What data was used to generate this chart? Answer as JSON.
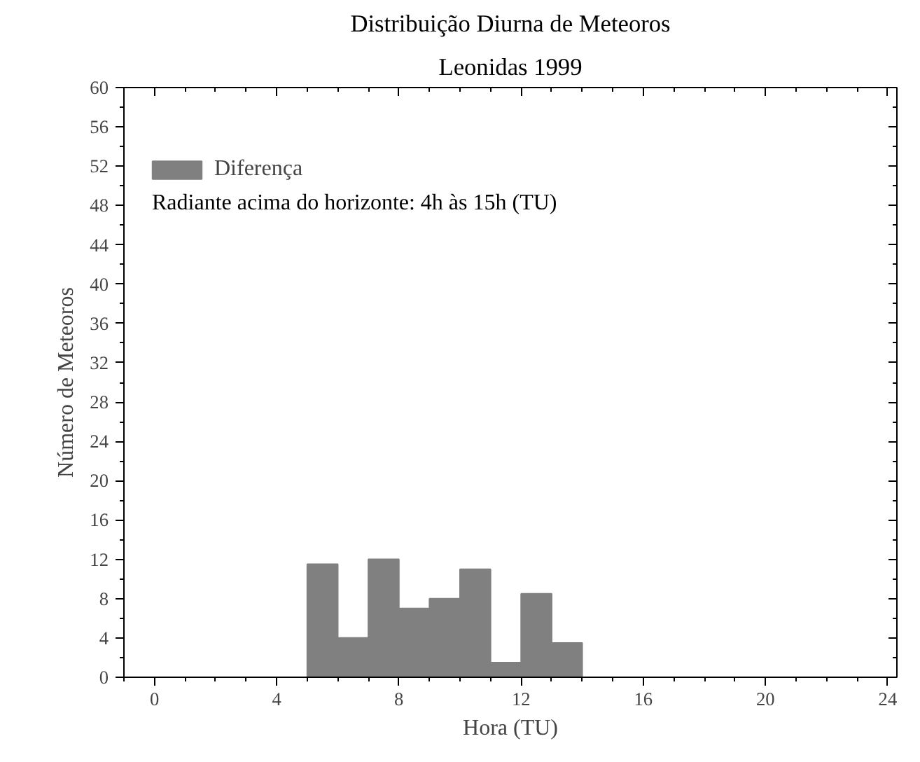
{
  "chart_data": {
    "type": "histogram",
    "title": "Distribuição Diurna de Meteoros",
    "subtitle": "Leonidas 1999",
    "xlabel": "Hora (TU)",
    "ylabel": "Número de Meteoros",
    "bins": [
      5,
      6,
      7,
      8,
      9,
      10,
      11,
      12,
      13,
      14
    ],
    "series": [
      {
        "name": "Diferença",
        "color": "#808080",
        "values": [
          11.5,
          4,
          12,
          7,
          8,
          11,
          1.5,
          8.5,
          3.5
        ]
      }
    ],
    "xlim": [
      -1,
      24.3
    ],
    "ylim": [
      0,
      60
    ],
    "xticks": [
      0,
      4,
      8,
      12,
      16,
      20,
      24
    ],
    "yticks": [
      0,
      4,
      8,
      12,
      16,
      20,
      24,
      28,
      32,
      36,
      40,
      44,
      48,
      52,
      56,
      60
    ],
    "annotations": [
      "Radiante acima do horizonte: 4h às 15h (TU)"
    ],
    "legend": "top left",
    "grid": false
  }
}
